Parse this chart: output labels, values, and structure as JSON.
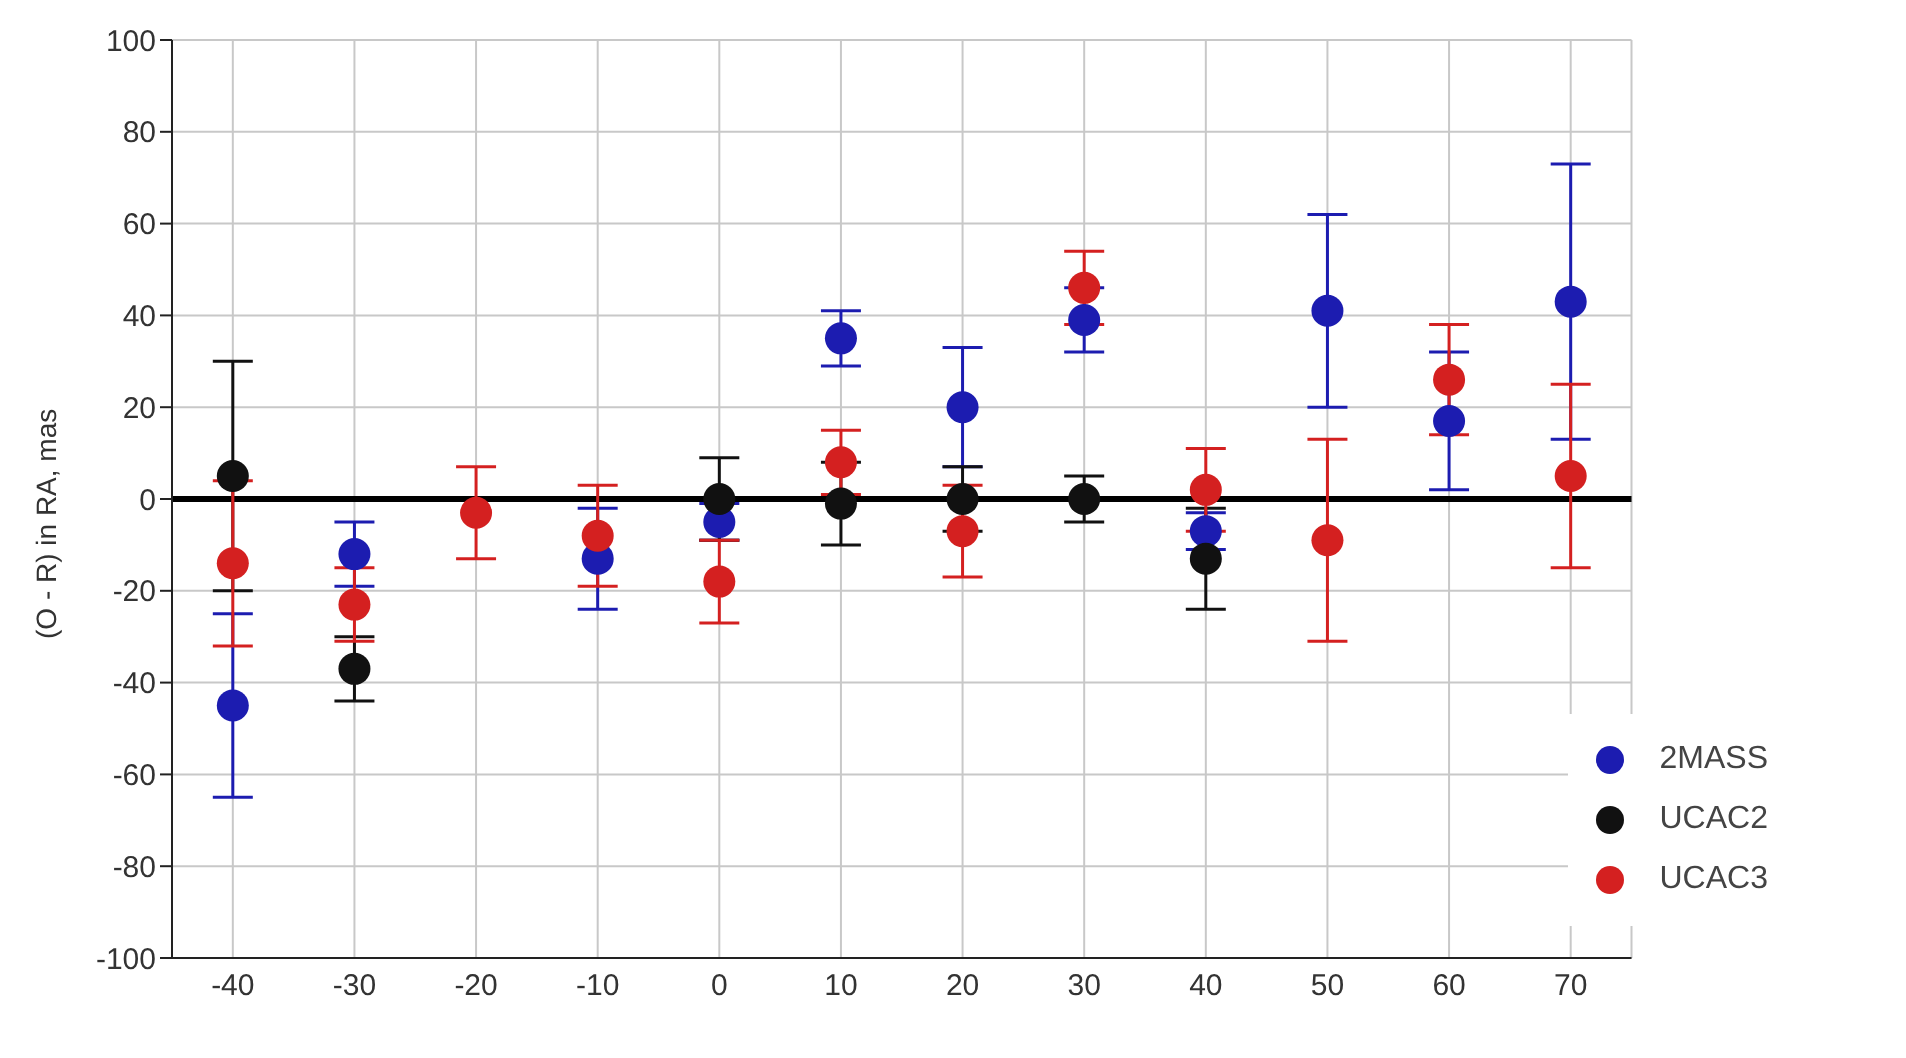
{
  "chart_data": {
    "type": "scatter",
    "ylabel": "(O - R) in RA, mas",
    "x": [
      -40,
      -30,
      -20,
      -10,
      0,
      10,
      20,
      30,
      40,
      50,
      60,
      70
    ],
    "series": [
      {
        "name": "2MASS",
        "color": "#1c1cb0",
        "values": [
          -45,
          -12,
          null,
          -13,
          -5,
          35,
          20,
          39,
          -7,
          41,
          17,
          43
        ],
        "errors": [
          20,
          7,
          null,
          11,
          4,
          6,
          13,
          7,
          4,
          21,
          15,
          30
        ]
      },
      {
        "name": "UCAC2",
        "color": "#111111",
        "values": [
          5,
          -37,
          null,
          null,
          0,
          -1,
          0,
          0,
          -13,
          null,
          null,
          null
        ],
        "errors": [
          25,
          7,
          null,
          null,
          9,
          9,
          7,
          5,
          11,
          null,
          null,
          null
        ]
      },
      {
        "name": "UCAC3",
        "color": "#d42020",
        "values": [
          -14,
          -23,
          -3,
          -8,
          -18,
          8,
          -7,
          46,
          2,
          -9,
          26,
          5
        ],
        "errors": [
          18,
          8,
          10,
          11,
          9,
          7,
          10,
          8,
          9,
          22,
          12,
          20
        ]
      }
    ],
    "xlim": [
      -45,
      75
    ],
    "xticks": [
      -40,
      -30,
      -20,
      -10,
      0,
      10,
      20,
      30,
      40,
      50,
      60,
      70
    ],
    "ylim": [
      -100,
      100
    ],
    "yticks": [
      -100,
      -80,
      -60,
      -40,
      -20,
      0,
      20,
      40,
      60,
      80,
      100
    ],
    "ref_lines": [
      {
        "axis": "y",
        "value": 0,
        "color": "#000000"
      }
    ],
    "grid": true,
    "legend": "bottom right",
    "marker": "circle"
  }
}
